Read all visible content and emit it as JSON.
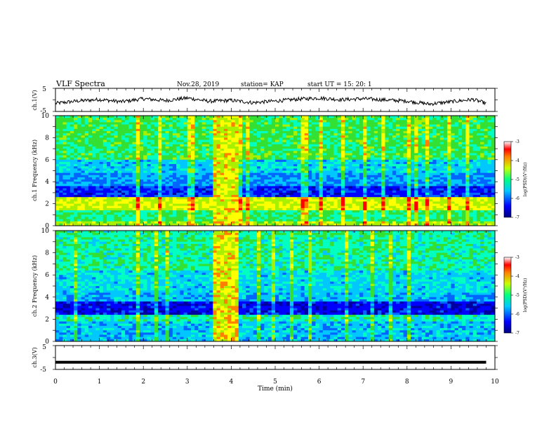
{
  "header": {
    "title": "VLF Spectra",
    "date": "Nov.28, 2019",
    "station": "station= KAP",
    "start_ut": "start  UT =   15: 20: 1"
  },
  "colors": {
    "spectrum_low": "#0000cc",
    "spectrum_mid": "#00d8d8",
    "spectrum_green": "#33e033",
    "spectrum_high": "#ffff00",
    "spectrum_peak": "#ff0000",
    "trace": "#000000"
  },
  "chart_data": [
    {
      "type": "line",
      "panel": "ch1-waveform",
      "ylabel": "ch.1(V)",
      "ylim": [
        -5,
        5
      ],
      "yticks": [
        "5",
        "-5"
      ],
      "xlim": [
        0,
        10
      ],
      "series": [
        {
          "x": [
            0,
            0.5,
            1,
            1.5,
            2,
            2.5,
            3,
            3.5,
            4,
            4.5,
            5,
            5.5,
            6,
            6.5,
            7,
            7.5,
            8,
            8.5,
            9,
            9.5,
            9.8
          ],
          "values": [
            -1.5,
            -0.5,
            0.2,
            -0.8,
            0.5,
            -0.3,
            0.8,
            -0.6,
            -0.2,
            -1.2,
            -0.5,
            0.3,
            0.8,
            0.1,
            0.5,
            0,
            -0.5,
            -1.8,
            -0.8,
            0.2,
            -1.5
          ]
        }
      ]
    },
    {
      "type": "heatmap",
      "panel": "ch1-spectrogram",
      "ylabel": "ch.1 Frequency (kHz)",
      "ylim": [
        0,
        10
      ],
      "yticks": [
        "0",
        "2",
        "4",
        "6",
        "8",
        "10"
      ],
      "xlim": [
        0,
        10
      ],
      "colorbar": {
        "label": "log(PSD)(V²/Hz)",
        "range": [
          -7,
          -3
        ],
        "ticks": [
          "-3",
          "-4",
          "-5",
          "-6",
          "-7"
        ]
      }
    },
    {
      "type": "heatmap",
      "panel": "ch2-spectrogram",
      "ylabel": "ch.2 Frequency (kHz)",
      "ylim": [
        0,
        10
      ],
      "yticks": [
        "0",
        "2",
        "4",
        "6",
        "8",
        "10"
      ],
      "xlim": [
        0,
        10
      ],
      "colorbar": {
        "label": "log(PSD)(V²/Hz)",
        "range": [
          -7,
          -3
        ],
        "ticks": [
          "-3",
          "-4",
          "-5",
          "-6",
          "-7"
        ]
      }
    },
    {
      "type": "line",
      "panel": "ch3-waveform",
      "ylabel": "ch.3(V)",
      "ylim": [
        -5,
        5
      ],
      "yticks": [
        "5",
        "-5"
      ],
      "xlim": [
        0,
        10
      ],
      "series": [
        {
          "x": [
            0,
            9.8
          ],
          "values": [
            -2,
            -2
          ]
        }
      ]
    }
  ],
  "xaxis": {
    "label": "Time  (min)",
    "ticks": [
      "0",
      "1",
      "2",
      "3",
      "4",
      "5",
      "6",
      "7",
      "8",
      "9",
      "10"
    ]
  }
}
